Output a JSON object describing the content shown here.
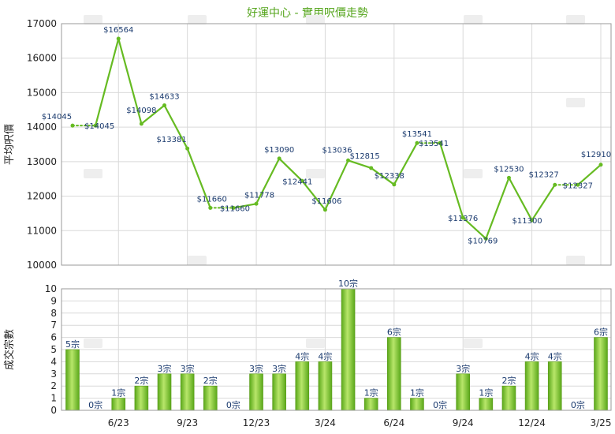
{
  "title": "好運中心 - 實用呎價走勢",
  "chart_data": [
    {
      "type": "line",
      "ylabel": "平均呎價",
      "ylim": [
        10000,
        17000
      ],
      "yticks": [
        10000,
        11000,
        12000,
        13000,
        14000,
        15000,
        16000,
        17000
      ],
      "grid": true,
      "series": [
        {
          "values": [
            14045,
            14045,
            16564,
            14098,
            14633,
            13381,
            11660,
            11660,
            11778,
            13090,
            12441,
            11606,
            13036,
            12815,
            12338,
            13541,
            13541,
            11376,
            10769,
            12530,
            11300,
            12327,
            12327,
            12910
          ],
          "labels": [
            "$14045",
            "$14045",
            "$16564",
            "$14098",
            "$14633",
            "$13381",
            "$11660",
            "$11660",
            "$11778",
            "$13090",
            "$12441",
            "$11606",
            "$13036",
            "$12815",
            "$12338",
            "$13541",
            "$13541",
            "$11376",
            "$10769",
            "$12530",
            "$11300",
            "$12327",
            "$12327",
            "$12910"
          ],
          "carried_forward": [
            false,
            true,
            false,
            false,
            false,
            false,
            false,
            true,
            false,
            false,
            false,
            false,
            false,
            false,
            false,
            false,
            true,
            false,
            false,
            false,
            false,
            false,
            true,
            false
          ],
          "color": "#66bb22"
        }
      ]
    },
    {
      "type": "bar",
      "ylabel": "成交宗數",
      "ylim": [
        0,
        10
      ],
      "yticks": [
        0,
        1,
        2,
        3,
        4,
        5,
        6,
        7,
        8,
        9,
        10
      ],
      "grid": true,
      "values": [
        5,
        0,
        1,
        2,
        3,
        3,
        2,
        0,
        3,
        3,
        4,
        4,
        10,
        1,
        6,
        1,
        0,
        3,
        1,
        2,
        4,
        4,
        0,
        6
      ],
      "labels": [
        "5宗",
        "0宗",
        "1宗",
        "2宗",
        "3宗",
        "3宗",
        "2宗",
        "0宗",
        "3宗",
        "3宗",
        "4宗",
        "4宗",
        "10宗",
        "1宗",
        "6宗",
        "1宗",
        "0宗",
        "3宗",
        "1宗",
        "2宗",
        "4宗",
        "4宗",
        "0宗",
        "6宗"
      ],
      "color": "#7cc52a"
    }
  ],
  "x_tick_labels": [
    {
      "index": 2,
      "label": "6/23"
    },
    {
      "index": 5,
      "label": "9/23"
    },
    {
      "index": 8,
      "label": "12/23"
    },
    {
      "index": 11,
      "label": "3/24"
    },
    {
      "index": 14,
      "label": "6/24"
    },
    {
      "index": 17,
      "label": "9/24"
    },
    {
      "index": 20,
      "label": "12/24"
    },
    {
      "index": 23,
      "label": "3/25"
    }
  ]
}
